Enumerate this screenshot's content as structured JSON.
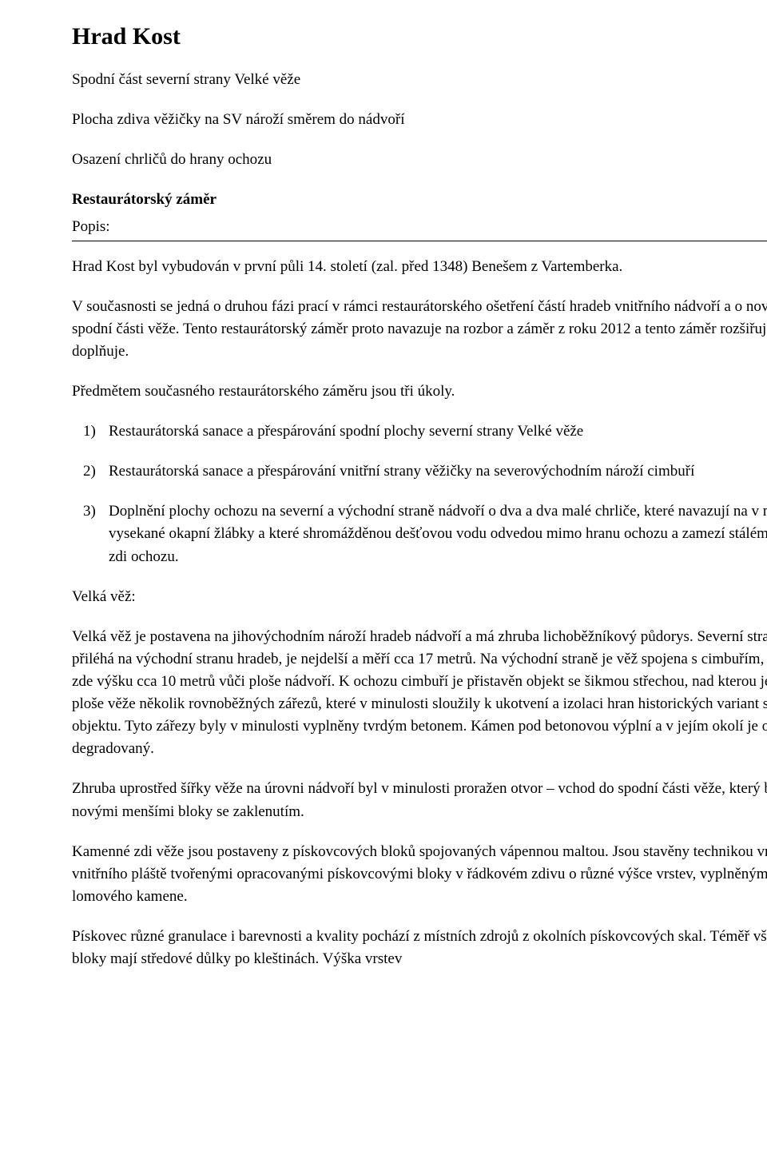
{
  "title": "Hrad Kost",
  "sub1": "Spodní část severní strany Velké věže",
  "sub2": "Plocha zdiva věžičky na SV nároží směrem do nádvoří",
  "sub3": "Osazení chrličů do hrany ochozu",
  "heading_zamer": "Restaurátorský záměr",
  "popis_label": "Popis:",
  "p1": "Hrad Kost byl vybudován v první půli 14. století (zal. před 1348) Benešem z Vartemberka.",
  "p2": "V současnosti se jedná o druhou fázi prací v rámci restaurátorského ošetření částí hradeb vnitřního nádvoří a o novou akci na spodní části věže. Tento restaurátorský záměr proto navazuje na rozbor a záměr z roku 2012 a tento záměr rozšiřuje a doplňuje.",
  "p3": "Předmětem současného restaurátorského záměru jsou tři úkoly.",
  "list": [
    {
      "num": "1)",
      "text": "Restaurátorská sanace a přespárování spodní plochy severní strany Velké věže"
    },
    {
      "num": "2)",
      "text": "Restaurátorská sanace a přespárování vnitřní strany věžičky na severovýchodním nároží cimbuří"
    },
    {
      "num": "3)",
      "text": "Doplnění plochy ochozu na severní a východní straně nádvoří o dva a dva malé chrliče, které navazují na v minulosti vysekané okapní žlábky a které shromážděnou dešťovou vodu odvedou mimo hranu ochozu a zamezí stálému provlhání zdi ochozu."
    }
  ],
  "section_label": "Velká věž:",
  "p4": "Velká věž je postavena na jihovýchodním nároží hradeb nádvoří a má zhruba lichoběžníkový půdorys. Severní strana, která přiléhá na východní stranu hradeb, je nejdelší a měří cca 17 metrů. Na východní straně je věž spojena s cimbuřím, které má zde výšku cca 10 metrů vůči ploše nádvoří. K ochozu cimbuří je přistavěn objekt se šikmou střechou, nad kterou je vidět v ploše věže několik rovnoběžných zářezů, které v minulosti sloužily k ukotvení a izolaci hran historických variant střech objektu. Tyto zářezy byly v minulosti vyplněny tvrdým betonem. Kámen pod betonovou výplní a v jejím okolí je oslabený, degradovaný.",
  "p5": "Zhruba uprostřed šířky věže na úrovni nádvoří byl v minulosti proražen otvor – vchod do spodní části věže, který byl dozděn novými menšími bloky se zaklenutím.",
  "p6": "Kamenné zdi věže jsou postaveny z pískovcových bloků spojovaných vápennou maltou. Jsou stavěny technikou vnějšího a vnitřního pláště tvořenými opracovanými pískovcovými bloky v řádkovém zdivu o různé výšce vrstev, vyplněnými zdivem z lomového kamene.",
  "p7": "Pískovec různé granulace i barevnosti a kvality pochází z místních zdrojů z okolních pískovcových skal. Téměř všechny bloky mají středové důlky po kleštinách. Výška vrstev"
}
